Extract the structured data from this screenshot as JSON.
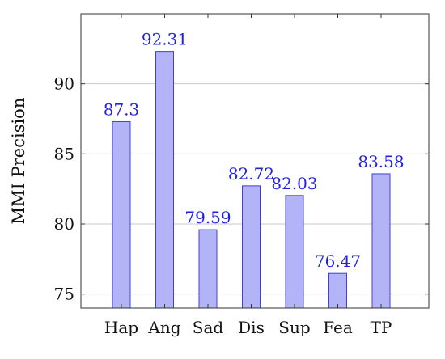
{
  "chart_data": {
    "type": "bar",
    "title": "",
    "xlabel": "",
    "ylabel": "MMI Precision",
    "categories": [
      "Hap",
      "Ang",
      "Sad",
      "Dis",
      "Sup",
      "Fea",
      "TP"
    ],
    "values": [
      87.3,
      92.31,
      79.59,
      82.72,
      82.03,
      76.47,
      83.58
    ],
    "value_labels": [
      "87.3",
      "92.31",
      "79.59",
      "82.72",
      "82.03",
      "76.47",
      "83.58"
    ],
    "ylim": [
      74,
      95
    ],
    "yticks": [
      75,
      80,
      85,
      90
    ],
    "ytick_labels": [
      "75",
      "80",
      "85",
      "90"
    ],
    "grid": "horizontal",
    "bar_fill": "#b3b3f7",
    "bar_stroke": "#4040d8",
    "label_color": "#2222dd",
    "grid_color": "#c8c8c8",
    "axis_color": "#333333"
  }
}
